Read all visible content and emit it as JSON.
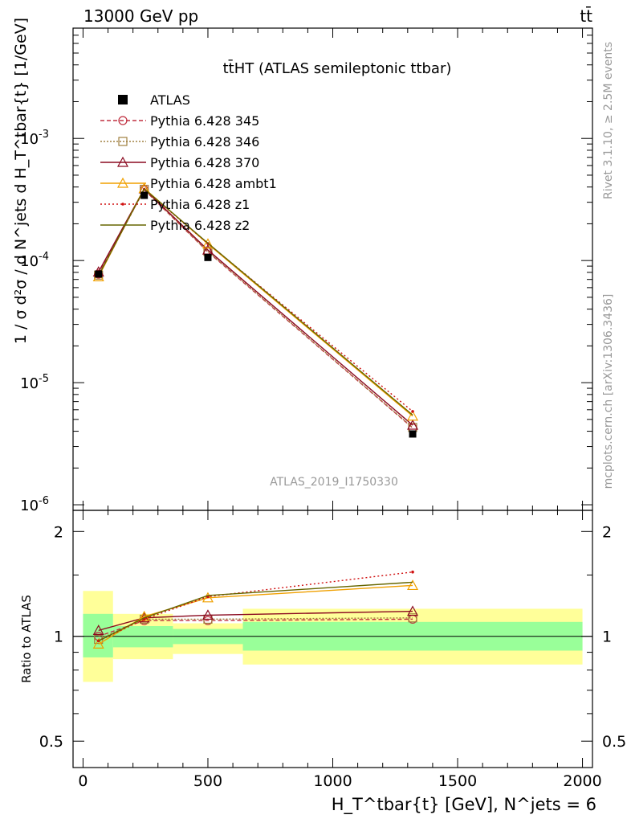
{
  "header": {
    "left": "13000 GeV pp",
    "right": "tt̄"
  },
  "side": {
    "rivet": "Rivet 3.1.10, ≥ 2.5M events",
    "mcplots": "mcplots.cern.ch [arXiv:1306.3436]"
  },
  "chart_data": {
    "type": "line",
    "title": "tt̄HT (ATLAS semileptonic ttbar)",
    "watermark": "ATLAS_2019_I1750330",
    "ylabel": "1 / σ d²σ / d N^jets d H_T^tbar{t} [1/GeV]",
    "xlabel": "H_T^tbar{t} [GeV], N^jets = 6",
    "ratio_ylabel": "Ratio to ATLAS",
    "xlim": [
      -40,
      2040
    ],
    "ylim": [
      9e-07,
      0.008
    ],
    "yscale": "log",
    "ratio_ylim": [
      0.42,
      2.3
    ],
    "ratio_yscale": "log",
    "x_ticks": [
      "0",
      "500",
      "1000",
      "1500",
      "2000"
    ],
    "y_ticks": [
      "10^-6",
      "10^-5",
      "10^-4",
      "10^-3"
    ],
    "ratio_ticks": [
      "0.5",
      "1",
      "2"
    ],
    "x": [
      62,
      245,
      500,
      1320
    ],
    "data": {
      "name": "ATLAS",
      "values": [
        7.75e-05,
        0.000342,
        0.000106,
        3.8e-06
      ]
    },
    "series": [
      {
        "name": "Pythia 6.428 345",
        "color": "#c03040",
        "dash": "5,3",
        "marker": "circle",
        "ratio": [
          1.0,
          1.11,
          1.11,
          1.12
        ]
      },
      {
        "name": "Pythia 6.428 346",
        "color": "#a08040",
        "dash": "2,2",
        "marker": "square",
        "ratio": [
          0.98,
          1.12,
          1.12,
          1.13
        ]
      },
      {
        "name": "Pythia 6.428 370",
        "color": "#8b0a20",
        "dash": "",
        "marker": "triangle",
        "ratio": [
          1.04,
          1.13,
          1.15,
          1.18
        ]
      },
      {
        "name": "Pythia 6.428 ambt1",
        "color": "#f0a000",
        "dash": "",
        "marker": "triangle",
        "ratio": [
          0.95,
          1.14,
          1.29,
          1.4
        ]
      },
      {
        "name": "Pythia 6.428 z1",
        "color": "#d01010",
        "dash": "2,3",
        "marker": "dot",
        "ratio": [
          0.97,
          1.12,
          1.3,
          1.53
        ]
      },
      {
        "name": "Pythia 6.428 z2",
        "color": "#666600",
        "dash": "",
        "marker": "none",
        "ratio": [
          0.97,
          1.13,
          1.31,
          1.43
        ]
      }
    ],
    "bands": {
      "edges": [
        0,
        120,
        360,
        640,
        2000
      ],
      "inner": [
        [
          0.87,
          1.16
        ],
        [
          0.93,
          1.07
        ],
        [
          0.95,
          1.05
        ],
        [
          0.91,
          1.1
        ]
      ],
      "outer": [
        [
          0.74,
          1.35
        ],
        [
          0.86,
          1.16
        ],
        [
          0.89,
          1.09
        ],
        [
          0.83,
          1.2
        ]
      ]
    }
  }
}
